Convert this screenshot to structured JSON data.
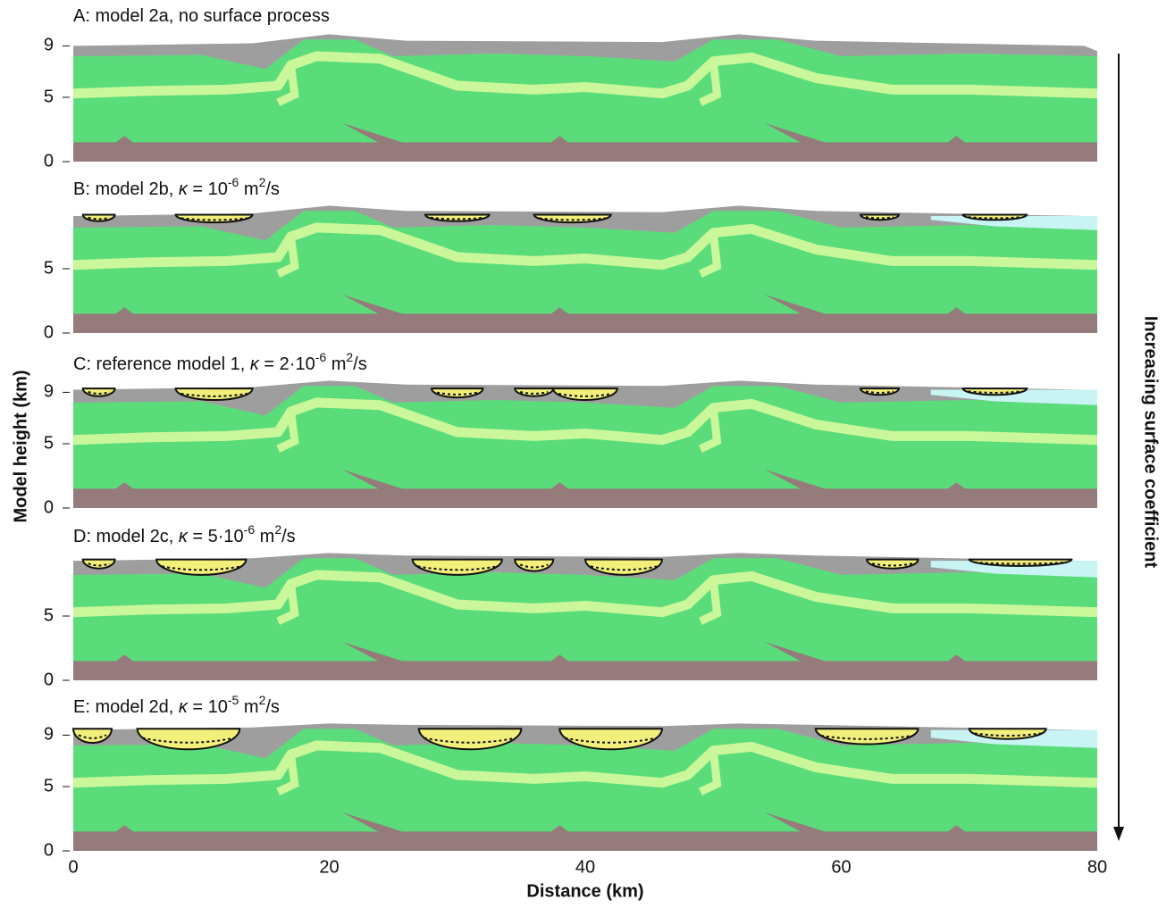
{
  "panels": [
    {
      "title": [
        "A: model 2a, no surface process"
      ],
      "yticks": [
        9,
        5,
        0
      ]
    },
    {
      "title": [
        "B: model 2b, ",
        "κ",
        " = 10",
        "-6",
        " m",
        "2",
        "/s"
      ],
      "yticks": [
        5,
        0
      ]
    },
    {
      "title": [
        "C: reference model 1, ",
        "κ",
        " = 2·10",
        "-6",
        " m",
        "2",
        "/s"
      ],
      "yticks": [
        9,
        5,
        0
      ]
    },
    {
      "title": [
        "D: model 2c, ",
        "κ",
        " = 5·10",
        "-6",
        " m",
        "2",
        "/s"
      ],
      "yticks": [
        5,
        0
      ]
    },
    {
      "title": [
        "E: model 2d, ",
        "κ",
        " = 10",
        "-5",
        " m",
        "2",
        "/s"
      ],
      "yticks": [
        9,
        5,
        0
      ]
    }
  ],
  "ylim": [
    0,
    10
  ],
  "xlim": [
    0,
    80
  ],
  "xticks": [
    0,
    20,
    40,
    60,
    80
  ],
  "x_label": "Distance (km)",
  "y_label": "Model height (km)",
  "side_label": "Increasing surface coefficient"
}
